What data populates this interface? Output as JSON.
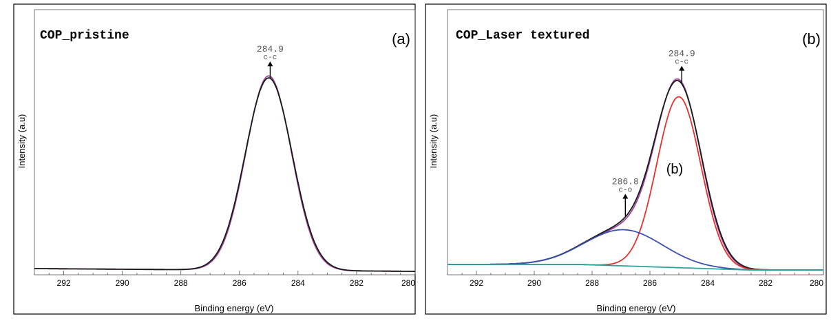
{
  "chart_data": [
    {
      "type": "line",
      "panel_label": "(a)",
      "title": "COP_pristine",
      "xlabel": "Binding energy (eV)",
      "ylabel": "Intensity (a.u)",
      "xlim": [
        293,
        280
      ],
      "x_reversed": true,
      "ylim": [
        0,
        1
      ],
      "x_ticks": [
        "292",
        "290",
        "288",
        "286",
        "284",
        "282",
        "280"
      ],
      "annotations": [
        {
          "value": "284.9",
          "label": "c-c",
          "x": 284.95,
          "arrow": true
        }
      ],
      "series": [
        {
          "color": "#a0479b",
          "peaks": [
            {
              "center": 285.0,
              "height": 0.96,
              "sigma": 0.78
            }
          ],
          "baseline": 0.0
        },
        {
          "color": "#1a1a1a",
          "peaks": [
            {
              "center": 285.0,
              "height": 0.95,
              "sigma": 0.8
            }
          ],
          "baseline": 0.0
        }
      ]
    },
    {
      "type": "line",
      "panel_label": "(b)",
      "title": "COP_Laser textured",
      "inner_label": "(b)",
      "xlabel": "Binding energy (eV)",
      "ylabel": "Intensity (a.u)",
      "xlim": [
        293,
        280
      ],
      "x_reversed": true,
      "ylim": [
        0,
        1
      ],
      "x_ticks": [
        "292",
        "290",
        "288",
        "286",
        "284",
        "282",
        "280"
      ],
      "annotations": [
        {
          "value": "284.9",
          "label": "c-c",
          "x": 284.9,
          "arrow": true
        },
        {
          "value": "286.8",
          "label": "c-o",
          "x": 286.85,
          "arrow": true
        }
      ],
      "series": [
        {
          "role": "envelope",
          "color": "#9c4aa0",
          "peaks": [
            {
              "center": 285.0,
              "height": 0.87,
              "sigma": 0.78
            },
            {
              "center": 286.9,
              "height": 0.18,
              "sigma": 1.35
            }
          ],
          "baseline": 0.0
        },
        {
          "role": "envelope",
          "color": "#1a1a1a",
          "peaks": [
            {
              "center": 285.0,
              "height": 0.86,
              "sigma": 0.8
            },
            {
              "center": 286.9,
              "height": 0.185,
              "sigma": 1.35
            }
          ],
          "baseline": 0.0
        },
        {
          "role": "component C-C",
          "color": "#e8302c",
          "peaks": [
            {
              "center": 285.0,
              "height": 0.85,
              "sigma": 0.76
            }
          ],
          "baseline": 0.0
        },
        {
          "role": "component C-O",
          "color": "#3c4fb5",
          "peaks": [
            {
              "center": 286.9,
              "height": 0.18,
              "sigma": 1.35
            }
          ],
          "baseline": 0.0
        },
        {
          "role": "background",
          "color": "#2aa69a",
          "peaks": [],
          "baseline": 0.0
        }
      ]
    }
  ]
}
